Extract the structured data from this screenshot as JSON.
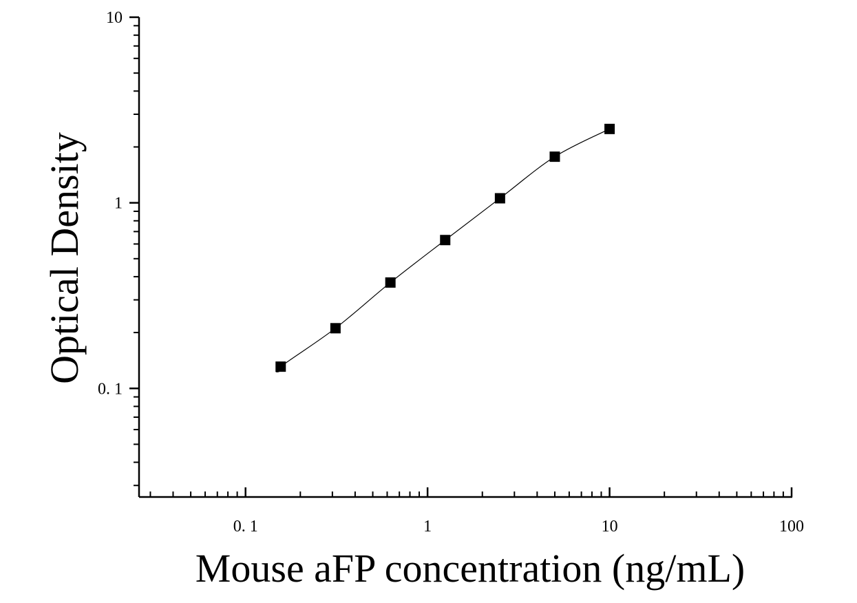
{
  "chart_data": {
    "type": "scatter",
    "title": "",
    "xlabel": "Mouse aFP concentration (ng/mL)",
    "ylabel": "Optical Density",
    "x_scale": "log",
    "y_scale": "log",
    "xlim": [
      0.026,
      100
    ],
    "ylim": [
      0.026,
      10
    ],
    "x_ticks": [
      {
        "value": 0.1,
        "label": "0. 1"
      },
      {
        "value": 1,
        "label": "1"
      },
      {
        "value": 10,
        "label": "10"
      },
      {
        "value": 100,
        "label": "100"
      }
    ],
    "y_ticks": [
      {
        "value": 0.1,
        "label": "0. 1"
      },
      {
        "value": 1,
        "label": "1"
      },
      {
        "value": 10,
        "label": "10"
      }
    ],
    "grid": false,
    "series": [
      {
        "marker": "square",
        "color": "#000000",
        "x": [
          0.156,
          0.312,
          0.625,
          1.25,
          2.5,
          5,
          10
        ],
        "y": [
          0.131,
          0.211,
          0.372,
          0.63,
          1.058,
          1.772,
          2.5
        ]
      }
    ],
    "fit_curve": {
      "type": "smooth-interpolation",
      "color": "#000000"
    }
  }
}
